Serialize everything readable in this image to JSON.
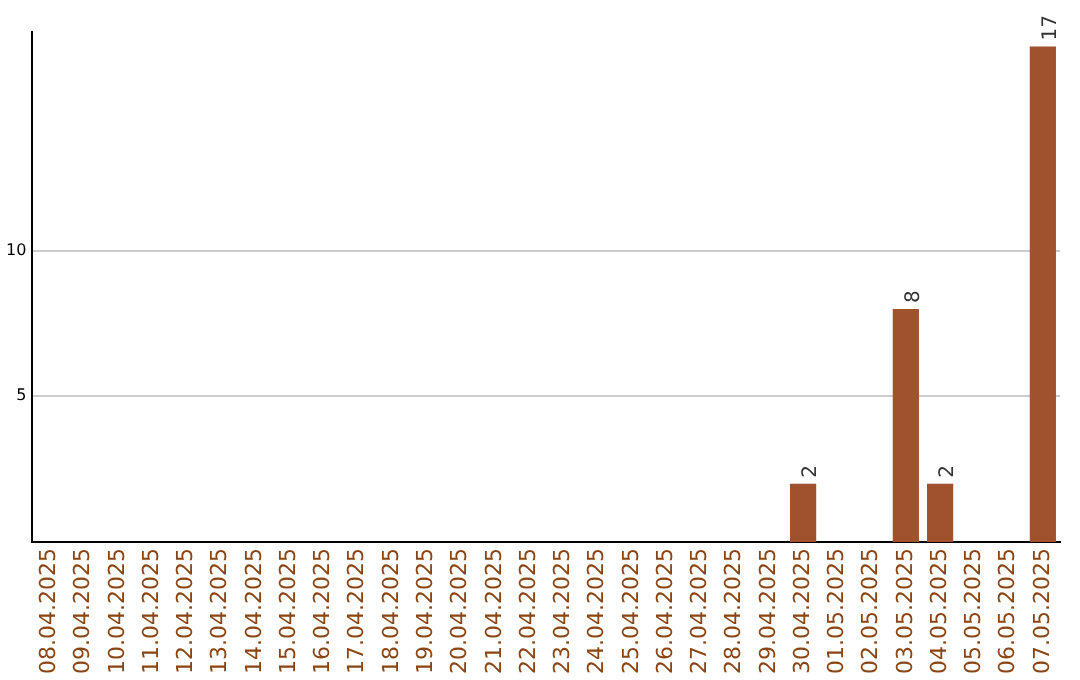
{
  "chart_data": {
    "type": "bar",
    "categories": [
      "08.04.2025",
      "09.04.2025",
      "10.04.2025",
      "11.04.2025",
      "12.04.2025",
      "13.04.2025",
      "14.04.2025",
      "15.04.2025",
      "16.04.2025",
      "17.04.2025",
      "18.04.2025",
      "19.04.2025",
      "20.04.2025",
      "21.04.2025",
      "22.04.2025",
      "23.04.2025",
      "24.04.2025",
      "25.04.2025",
      "26.04.2025",
      "27.04.2025",
      "28.04.2025",
      "29.04.2025",
      "30.04.2025",
      "01.05.2025",
      "02.05.2025",
      "03.05.2025",
      "04.05.2025",
      "05.05.2025",
      "06.05.2025",
      "07.05.2025"
    ],
    "values": [
      0,
      0,
      0,
      0,
      0,
      0,
      0,
      0,
      0,
      0,
      0,
      0,
      0,
      0,
      0,
      0,
      0,
      0,
      0,
      0,
      0,
      0,
      2,
      0,
      0,
      8,
      2,
      0,
      0,
      17
    ],
    "value_labels": [
      null,
      null,
      null,
      null,
      null,
      null,
      null,
      null,
      null,
      null,
      null,
      null,
      null,
      null,
      null,
      null,
      null,
      null,
      null,
      null,
      null,
      null,
      "2",
      null,
      null,
      "8",
      "2",
      null,
      null,
      "17"
    ],
    "color": "#a0522d",
    "ylim": [
      0,
      17.5
    ],
    "yticks": [
      5,
      10
    ],
    "grid": "y",
    "legend": false
  }
}
